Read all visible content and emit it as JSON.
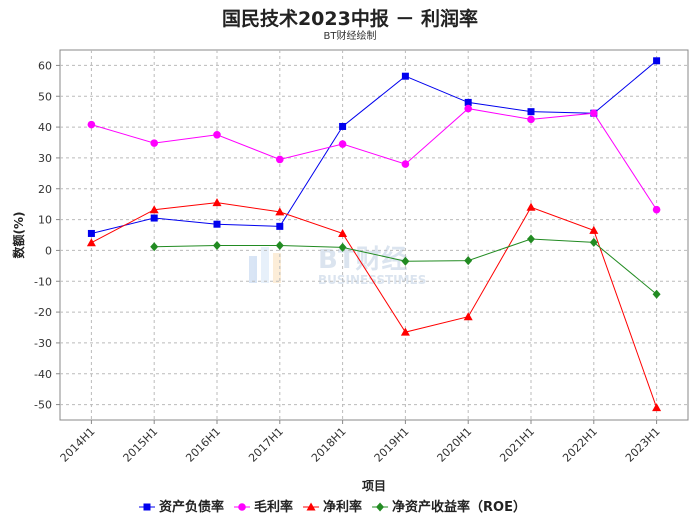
{
  "title": "国民技术2023中报 － 利润率",
  "subtitle": "BT财经绘制",
  "watermark": {
    "main": "BT财经",
    "sub": "BUSINESSTIMES"
  },
  "chart_data": {
    "type": "line",
    "xlabel": "项目",
    "ylabel": "数额(%)",
    "ylim": [
      -55,
      65
    ],
    "yticks": [
      60,
      50,
      40,
      30,
      20,
      10,
      0,
      -10,
      -20,
      -30,
      -40,
      -50
    ],
    "grid": true,
    "legend_position": "bottom",
    "categories": [
      "2014H1",
      "2015H1",
      "2016H1",
      "2017H1",
      "2018H1",
      "2019H1",
      "2020H1",
      "2021H1",
      "2022H1",
      "2023H1"
    ],
    "series": [
      {
        "name": "资产负债率",
        "color": "#0000ee",
        "marker": "square",
        "values": [
          5.5,
          10.5,
          8.5,
          7.8,
          40.2,
          56.5,
          48.0,
          45.0,
          44.5,
          61.5
        ]
      },
      {
        "name": "毛利率",
        "color": "#ff00ff",
        "marker": "circle",
        "values": [
          40.8,
          34.8,
          37.5,
          29.5,
          34.5,
          28.0,
          46.0,
          42.5,
          44.5,
          13.2
        ]
      },
      {
        "name": "净利率",
        "color": "#ff0000",
        "marker": "triangle",
        "values": [
          2.5,
          13.2,
          15.5,
          12.5,
          5.5,
          -26.5,
          -21.5,
          14.0,
          6.5,
          -51.0
        ]
      },
      {
        "name": "净资产收益率（ROE）",
        "color": "#228b22",
        "marker": "diamond",
        "values": [
          null,
          1.2,
          1.6,
          1.6,
          1.0,
          -3.5,
          -3.3,
          3.7,
          2.6,
          -14.2
        ]
      }
    ]
  }
}
